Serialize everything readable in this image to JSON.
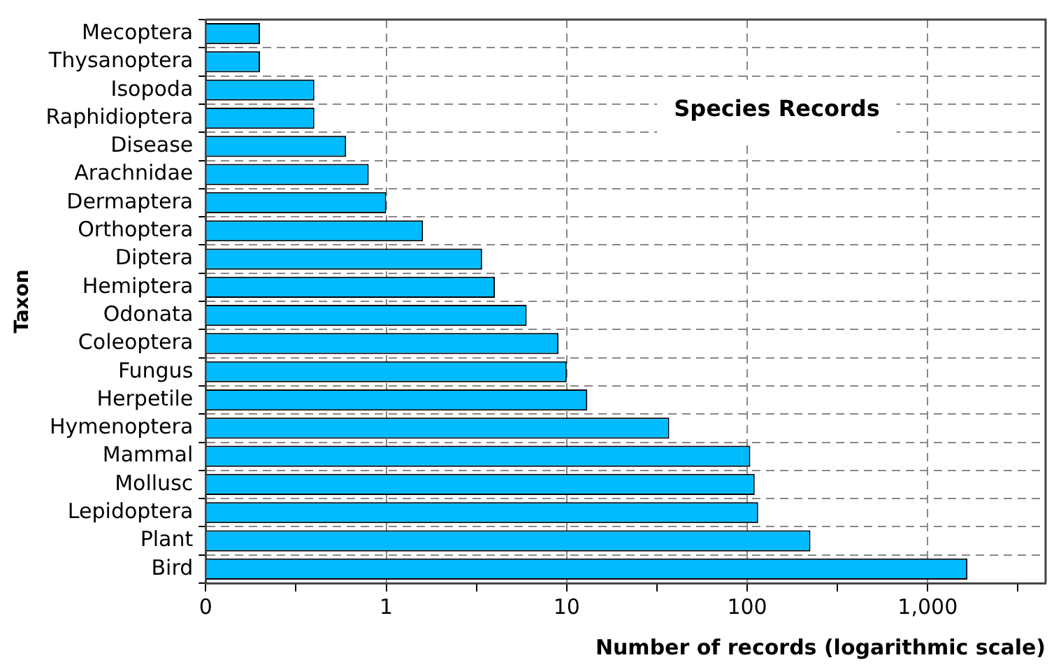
{
  "chart_data": {
    "type": "bar",
    "orientation": "horizontal",
    "title": "Species Records",
    "xlabel": "Number of records (logarithmic scale)",
    "ylabel": "Taxon",
    "categories": [
      "Mecoptera",
      "Thysanoptera",
      "Isopoda",
      "Raphidioptera",
      "Disease",
      "Arachnidae",
      "Dermaptera",
      "Orthoptera",
      "Diptera",
      "Hemiptera",
      "Odonata",
      "Coleoptera",
      "Fungus",
      "Herpetile",
      "Hymenoptera",
      "Mammal",
      "Mollusc",
      "Lepidoptera",
      "Plant",
      "Bird"
    ],
    "values": [
      0.2,
      0.2,
      0.4,
      0.4,
      0.6,
      0.8,
      1,
      1.6,
      3.4,
      4,
      6,
      9,
      10,
      13,
      37,
      104,
      110,
      115,
      224,
      1660
    ],
    "color": "#00bbff",
    "log": "x",
    "xlim": [
      0.1,
      4500
    ],
    "xticks": [
      {
        "value": 0.1,
        "label": "0"
      },
      {
        "value": 0.316,
        "label": null
      },
      1,
      {
        "value": 3.16,
        "label": null
      },
      10,
      {
        "value": 31.6,
        "label": null
      },
      100,
      {
        "value": 316,
        "label": null
      },
      {
        "value": 1000,
        "label": "1,000"
      },
      {
        "value": 3162,
        "label": null
      }
    ],
    "grid": true,
    "legend": false
  }
}
